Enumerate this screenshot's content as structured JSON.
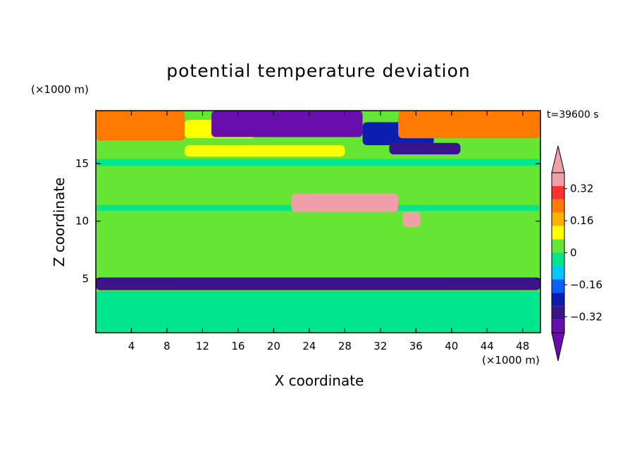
{
  "chart_data": {
    "type": "heatmap",
    "title": "potential temperature deviation",
    "xlabel": "X coordinate",
    "ylabel": "Z coordinate",
    "x_unit_label": "(×1000 m)",
    "y_unit_label": "(×1000 m)",
    "time_label": "t=39600 s",
    "xlim": [
      0,
      50
    ],
    "ylim": [
      0.3,
      19.6
    ],
    "x_ticks": [
      4,
      8,
      12,
      16,
      20,
      24,
      28,
      32,
      36,
      40,
      44,
      48
    ],
    "y_ticks": [
      5,
      10,
      15
    ],
    "colorbar": {
      "levels": [
        -0.4,
        -0.36,
        -0.32,
        -0.24,
        -0.16,
        -0.08,
        0,
        0.08,
        0.16,
        0.24,
        0.32,
        0.36,
        0.4
      ],
      "tick_labels": [
        "0.32",
        "0.16",
        "0",
        "−0.16",
        "−0.32"
      ],
      "tick_values": [
        0.32,
        0.16,
        0,
        -0.16,
        -0.32
      ],
      "colors_low_to_high": [
        "#6a0dad",
        "#3b148c",
        "#0a1fb0",
        "#0a5fff",
        "#00c8ff",
        "#00e68c",
        "#64e632",
        "#ffff00",
        "#ffb000",
        "#ff7a00",
        "#ff3030",
        "#f0a0a8"
      ],
      "under_color": "#6a0dad",
      "over_color": "#f0a0a8"
    },
    "regions": [
      {
        "x": [
          0,
          10
        ],
        "z": [
          17.0,
          19.6
        ],
        "value": 0.28
      },
      {
        "x": [
          10,
          18
        ],
        "z": [
          17.2,
          18.8
        ],
        "value": 0.12
      },
      {
        "x": [
          13,
          30
        ],
        "z": [
          17.3,
          19.6
        ],
        "value": -0.4
      },
      {
        "x": [
          30,
          38
        ],
        "z": [
          16.6,
          18.6
        ],
        "value": -0.3
      },
      {
        "x": [
          33,
          41
        ],
        "z": [
          15.8,
          16.8
        ],
        "value": -0.34
      },
      {
        "x": [
          34,
          50
        ],
        "z": [
          17.2,
          19.6
        ],
        "value": 0.3
      },
      {
        "x": [
          10,
          28
        ],
        "z": [
          15.6,
          16.6
        ],
        "value": 0.14
      },
      {
        "x": [
          0,
          50
        ],
        "z": [
          14.8,
          15.4
        ],
        "value": -0.06
      },
      {
        "x": [
          0,
          50
        ],
        "z": [
          12.6,
          14.5
        ],
        "value": 0.04
      },
      {
        "x": [
          0,
          50
        ],
        "z": [
          10.9,
          11.4
        ],
        "value": -0.06
      },
      {
        "x": [
          22,
          34
        ],
        "z": [
          10.8,
          12.4
        ],
        "value": 0.36
      },
      {
        "x": [
          34.5,
          36.5
        ],
        "z": [
          9.5,
          10.8
        ],
        "value": 0.36
      },
      {
        "x": [
          0,
          50
        ],
        "z": [
          5.2,
          5.9
        ],
        "value": 0.06
      },
      {
        "x": [
          0,
          50
        ],
        "z": [
          4.0,
          5.1
        ],
        "value": -0.36
      },
      {
        "x": [
          0,
          50
        ],
        "z": [
          0.3,
          3.9
        ],
        "value": -0.08
      }
    ]
  }
}
